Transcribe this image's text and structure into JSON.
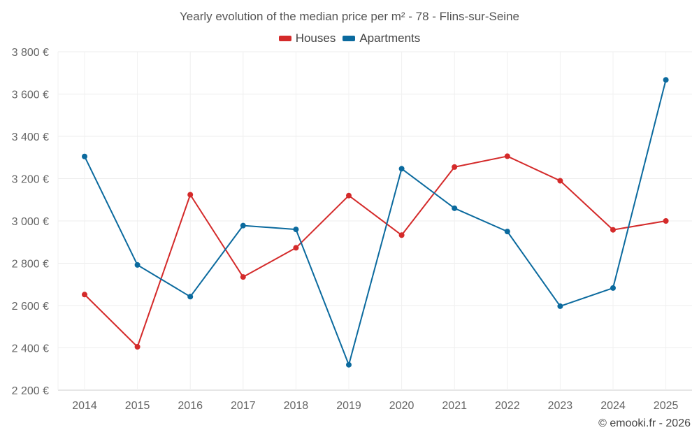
{
  "chart_data": {
    "type": "line",
    "title": "Yearly evolution of the median price per m² - 78 - Flins-sur-Seine",
    "x": [
      "2014",
      "2015",
      "2016",
      "2017",
      "2018",
      "2019",
      "2020",
      "2021",
      "2022",
      "2023",
      "2024",
      "2025"
    ],
    "series": [
      {
        "name": "Houses",
        "color": "#d42a2a",
        "values": [
          2652,
          2405,
          3124,
          2735,
          2873,
          3120,
          2933,
          3255,
          3306,
          3190,
          2958,
          3000
        ]
      },
      {
        "name": "Apartments",
        "color": "#0b6a9e",
        "values": [
          3305,
          2792,
          2642,
          2978,
          2960,
          2320,
          3247,
          3060,
          2950,
          2597,
          2683,
          3667
        ]
      }
    ],
    "ylim": [
      2200,
      3800
    ],
    "yticks": [
      2200,
      2400,
      2600,
      2800,
      3000,
      3200,
      3400,
      3600,
      3800
    ],
    "ytick_labels": [
      "2 200 €",
      "2 400 €",
      "2 600 €",
      "2 800 €",
      "3 000 €",
      "3 200 €",
      "3 400 €",
      "3 600 €",
      "3 800 €"
    ],
    "xlabel": "",
    "ylabel": "",
    "grid": true,
    "legend_position": "top-center"
  },
  "credit": "© emooki.fr - 2026"
}
